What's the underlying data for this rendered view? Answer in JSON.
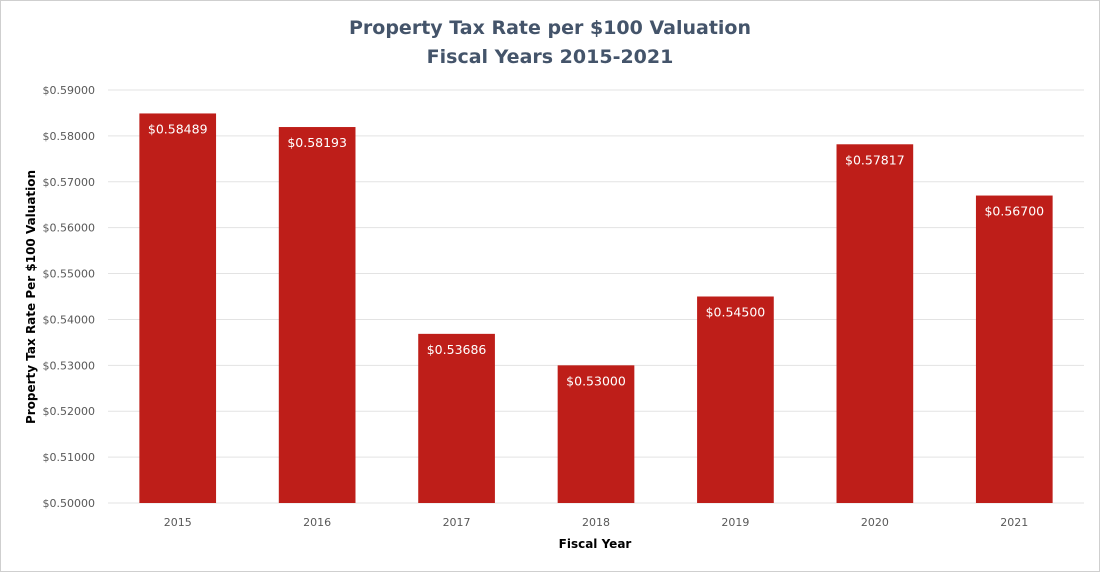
{
  "chart_data": {
    "type": "bar",
    "title": "Property Tax Rate per $100 Valuation",
    "subtitle": "Fiscal Years 2015-2021",
    "xlabel": "Fiscal Year",
    "ylabel": "Property Tax Rate Per $100 Valuation",
    "categories": [
      "2015",
      "2016",
      "2017",
      "2018",
      "2019",
      "2020",
      "2021"
    ],
    "values": [
      0.58489,
      0.58193,
      0.53686,
      0.53,
      0.545,
      0.57817,
      0.567
    ],
    "data_labels": [
      "$0.58489",
      "$0.58193",
      "$0.53686",
      "$0.53000",
      "$0.54500",
      "$0.57817",
      "$0.56700"
    ],
    "ylim": [
      0.5,
      0.59
    ],
    "yticks": [
      0.5,
      0.51,
      0.52,
      0.53,
      0.54,
      0.55,
      0.56,
      0.57,
      0.58,
      0.59
    ],
    "ytick_labels": [
      "$0.50000",
      "$0.51000",
      "$0.52000",
      "$0.53000",
      "$0.54000",
      "$0.55000",
      "$0.56000",
      "$0.57000",
      "$0.58000",
      "$0.59000"
    ],
    "grid": true,
    "legend": "none",
    "colors": {
      "bar": "#be1e19",
      "title": "#44546a",
      "grid": "#e3e3e3",
      "tick_text": "#595959",
      "axis_title": "#000000",
      "data_label": "#ffffff"
    }
  }
}
